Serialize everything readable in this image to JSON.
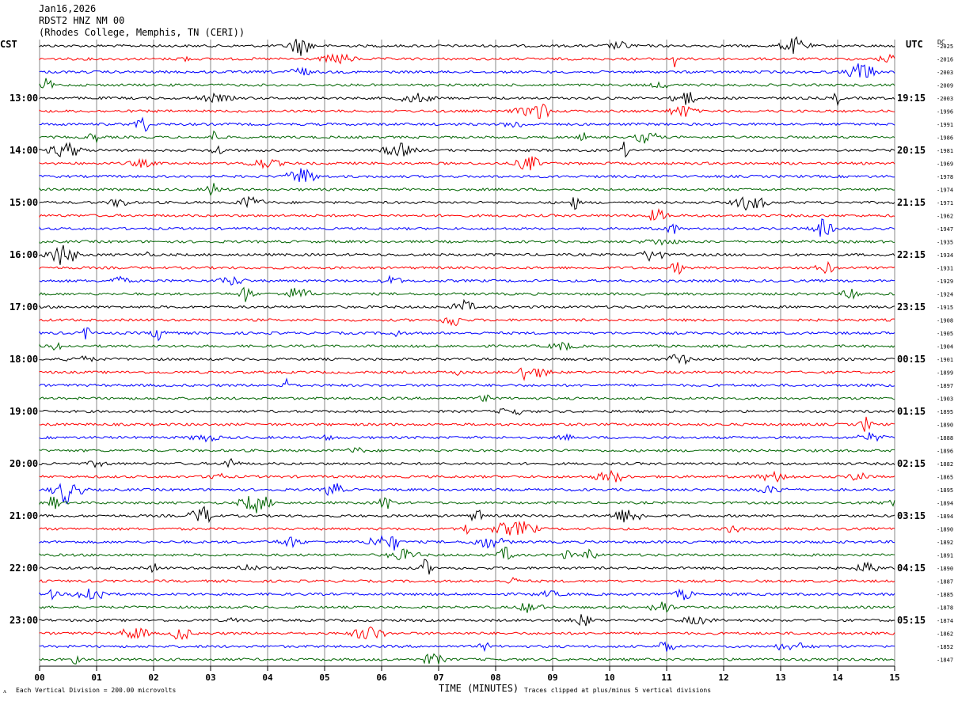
{
  "header": {
    "date": "Jan16,2026",
    "station": "RDST2 HNZ NM 00",
    "location": "(Rhodes College, Memphis, TN (CERI))"
  },
  "left_tz": "CST",
  "right_tz": "UTC",
  "dc_label": "DC",
  "footer": {
    "scale_note": "Each Vertical Division =  200.00 microvolts",
    "xlabel": "TIME (MINUTES)",
    "clip_note": "Traces clipped at plus/minus 5 vertical divisions"
  },
  "chart_data": {
    "type": "line",
    "title": "",
    "xlabel": "TIME (MINUTES)",
    "xlim": [
      0,
      15
    ],
    "grid": true,
    "x_ticks": [
      "00",
      "01",
      "02",
      "03",
      "04",
      "05",
      "06",
      "07",
      "08",
      "09",
      "10",
      "11",
      "12",
      "13",
      "14",
      "15"
    ],
    "trace_colors": [
      "#000000",
      "#ff0000",
      "#0000ff",
      "#006400"
    ],
    "trace_count": 48,
    "left_hour_labels": [
      "13:00",
      "14:00",
      "15:00",
      "16:00",
      "17:00",
      "18:00",
      "19:00",
      "20:00",
      "21:00",
      "22:00",
      "23:00"
    ],
    "right_hour_labels": [
      "19:15",
      "20:15",
      "21:15",
      "22:15",
      "23:15",
      "00:15",
      "01:15",
      "02:15",
      "03:15",
      "04:15",
      "05:15"
    ],
    "dc_offsets": [
      "-2025",
      "-2016",
      "-2003",
      "-2009",
      "-2003",
      "-1996",
      "-1991",
      "-1986",
      "-1981",
      "-1969",
      "-1978",
      "-1974",
      "-1971",
      "-1962",
      "-1947",
      "-1935",
      "-1934",
      "-1931",
      "-1929",
      "-1924",
      "-1915",
      "-1908",
      "-1905",
      "-1904",
      "-1901",
      "-1899",
      "-1897",
      "-1903",
      "-1895",
      "-1890",
      "-1888",
      "-1896",
      "-1882",
      "-1865",
      "-1895",
      "-1894",
      "-1894",
      "-1890",
      "-1892",
      "-1891",
      "-1890",
      "-1887",
      "-1885",
      "-1878",
      "-1874",
      "-1862",
      "-1852",
      "-1847"
    ]
  }
}
